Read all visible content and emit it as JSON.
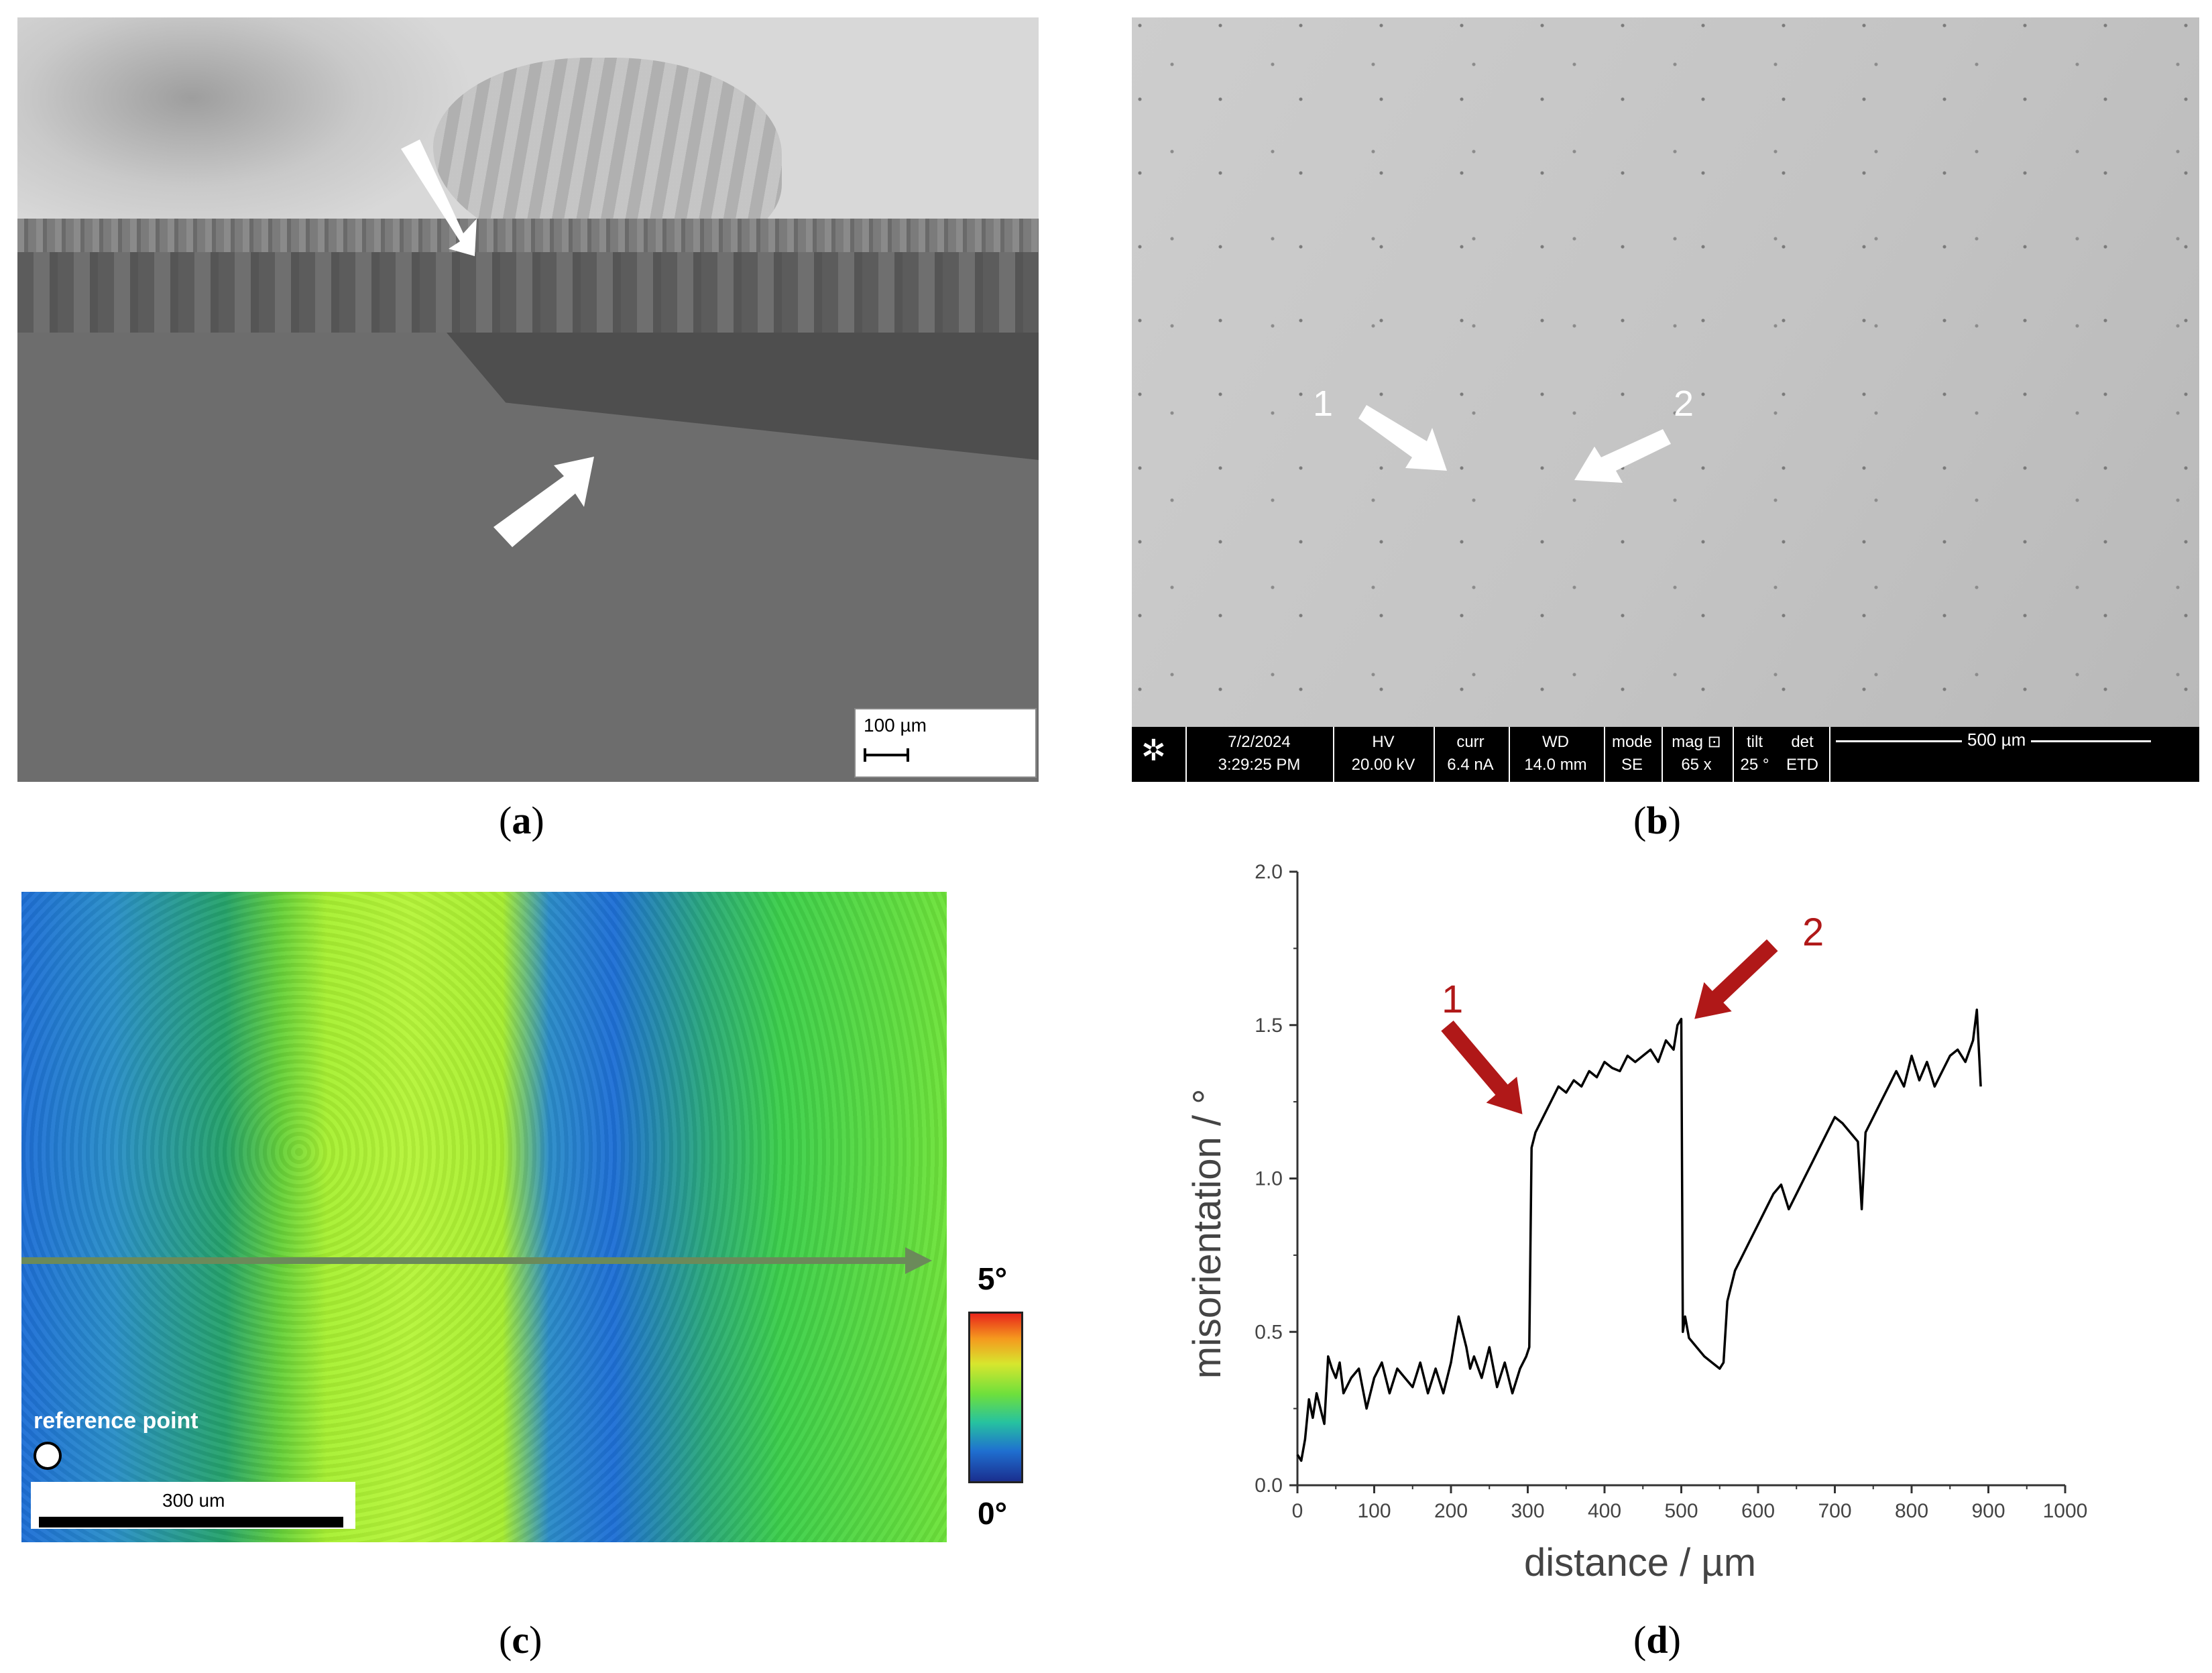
{
  "panel_a": {
    "caption": "a",
    "scale_label": "100 µm"
  },
  "panel_b": {
    "caption": "b",
    "arrow_labels": [
      "1",
      "2"
    ],
    "info_bar": {
      "date": "7/2/2024",
      "time": "3:29:25 PM",
      "fields": [
        {
          "label": "HV",
          "value": "20.00 kV"
        },
        {
          "label": "curr",
          "value": "6.4 nA"
        },
        {
          "label": "WD",
          "value": "14.0 mm"
        },
        {
          "label": "mode",
          "value": "SE"
        },
        {
          "label": "mag ⊡",
          "value": "65 x"
        },
        {
          "label": "tilt",
          "value": "25 °"
        },
        {
          "label": "det",
          "value": "ETD"
        }
      ],
      "scale_label": "500 µm"
    }
  },
  "panel_c": {
    "caption": "c",
    "reference_label": "reference point",
    "scale_label": "300 um",
    "colorbar_max": "5°",
    "colorbar_min": "0°"
  },
  "panel_d": {
    "caption": "d",
    "annotation_labels": [
      "1",
      "2"
    ],
    "annotation_color": "#b01818"
  },
  "chart_data": {
    "type": "line",
    "title": "",
    "xlabel": "distance / µm",
    "ylabel": "misorientation / °",
    "xlim": [
      0,
      1000
    ],
    "ylim": [
      0.0,
      2.0
    ],
    "xticks": [
      0,
      100,
      200,
      300,
      400,
      500,
      600,
      700,
      800,
      900,
      1000
    ],
    "yticks": [
      "0.0",
      "0.5",
      "1.0",
      "1.5",
      "2.0"
    ],
    "series": [
      {
        "color": "#000000",
        "x": [
          0,
          5,
          10,
          15,
          20,
          25,
          30,
          35,
          40,
          45,
          50,
          55,
          60,
          70,
          80,
          90,
          100,
          110,
          120,
          130,
          140,
          150,
          160,
          170,
          180,
          190,
          200,
          210,
          215,
          220,
          225,
          230,
          240,
          250,
          260,
          270,
          280,
          290,
          298,
          302,
          305,
          310,
          320,
          330,
          340,
          350,
          360,
          370,
          380,
          390,
          400,
          410,
          420,
          430,
          440,
          450,
          460,
          470,
          480,
          490,
          495,
          500,
          502,
          505,
          510,
          520,
          530,
          540,
          550,
          555,
          560,
          570,
          580,
          590,
          600,
          610,
          620,
          630,
          640,
          650,
          660,
          670,
          680,
          690,
          700,
          710,
          720,
          730,
          735,
          740,
          750,
          760,
          770,
          780,
          790,
          800,
          810,
          820,
          830,
          840,
          850,
          860,
          870,
          880,
          885,
          890
        ],
        "y": [
          0.1,
          0.08,
          0.15,
          0.28,
          0.22,
          0.3,
          0.25,
          0.2,
          0.42,
          0.38,
          0.35,
          0.4,
          0.3,
          0.35,
          0.38,
          0.25,
          0.35,
          0.4,
          0.3,
          0.38,
          0.35,
          0.32,
          0.4,
          0.3,
          0.38,
          0.3,
          0.4,
          0.55,
          0.5,
          0.45,
          0.38,
          0.42,
          0.35,
          0.45,
          0.32,
          0.4,
          0.3,
          0.38,
          0.42,
          0.45,
          1.1,
          1.15,
          1.2,
          1.25,
          1.3,
          1.28,
          1.32,
          1.3,
          1.35,
          1.33,
          1.38,
          1.36,
          1.35,
          1.4,
          1.38,
          1.4,
          1.42,
          1.38,
          1.45,
          1.42,
          1.5,
          1.52,
          0.5,
          0.55,
          0.48,
          0.45,
          0.42,
          0.4,
          0.38,
          0.4,
          0.6,
          0.7,
          0.75,
          0.8,
          0.85,
          0.9,
          0.95,
          0.98,
          0.9,
          0.95,
          1.0,
          1.05,
          1.1,
          1.15,
          1.2,
          1.18,
          1.15,
          1.12,
          0.9,
          1.15,
          1.2,
          1.25,
          1.3,
          1.35,
          1.3,
          1.4,
          1.32,
          1.38,
          1.3,
          1.35,
          1.4,
          1.42,
          1.38,
          1.45,
          1.55,
          1.3
        ]
      }
    ]
  }
}
